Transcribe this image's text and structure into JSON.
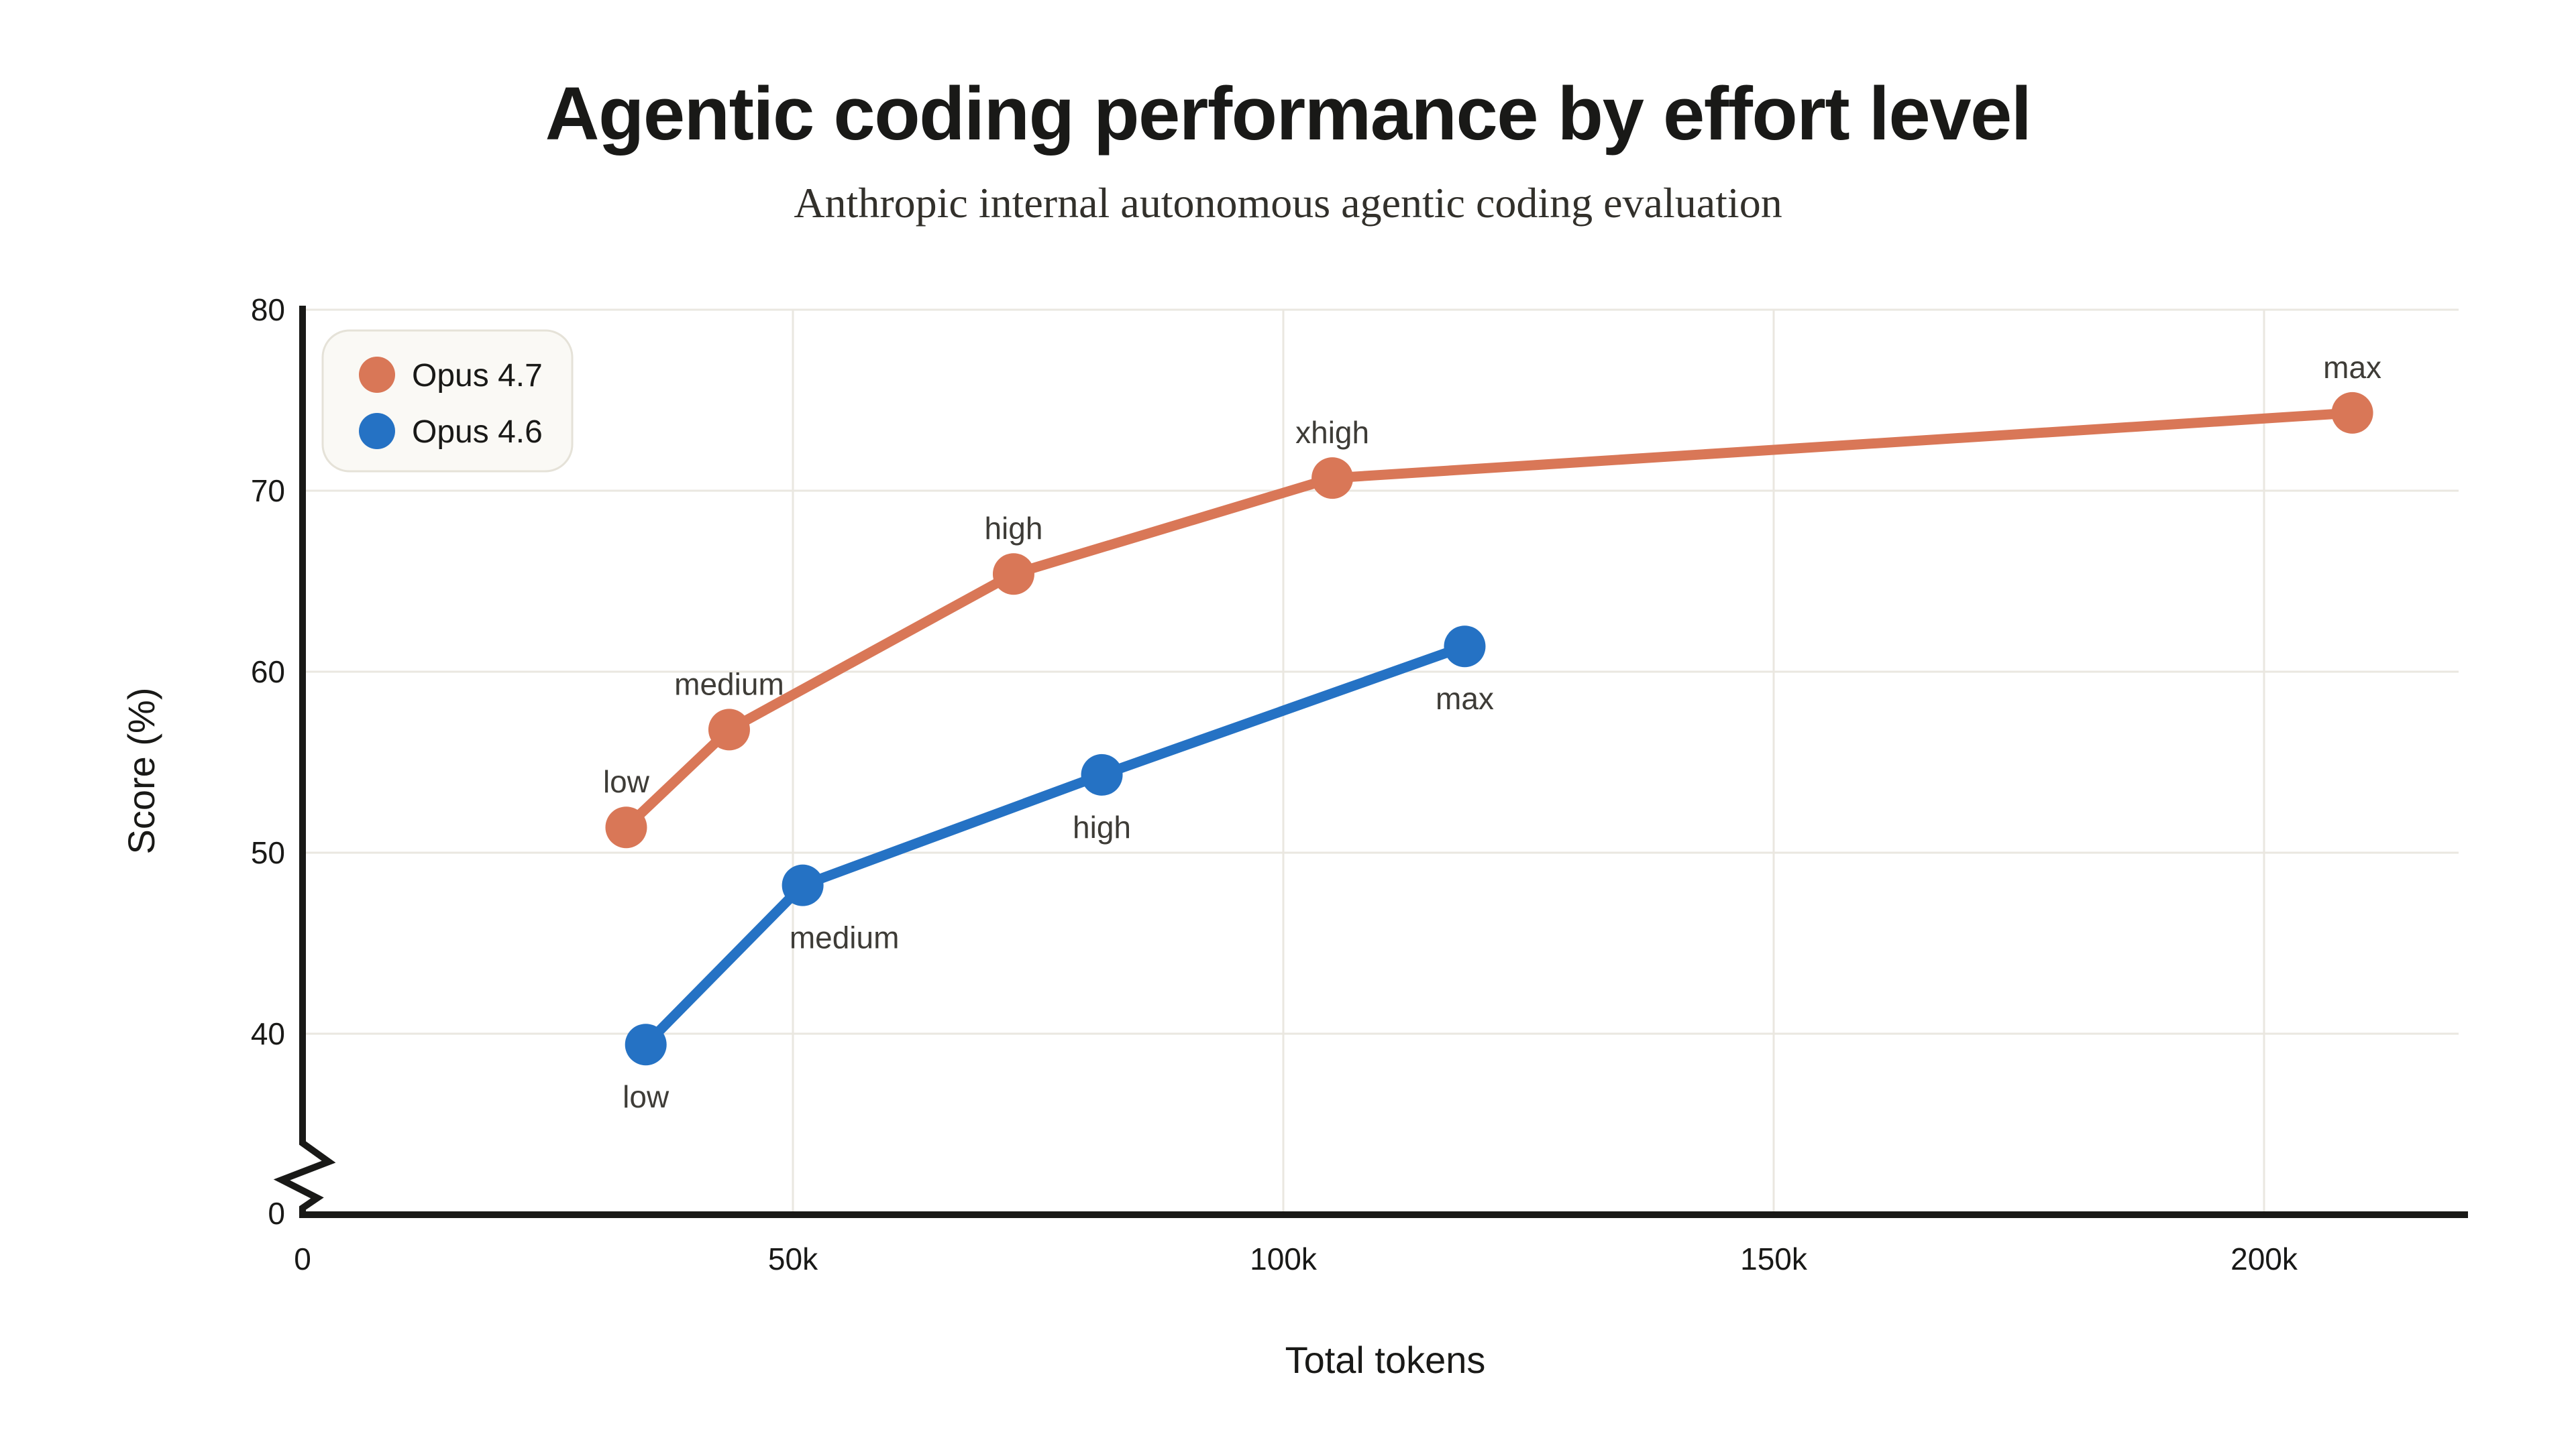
{
  "header": {
    "title": "Agentic coding performance by effort level",
    "subtitle": "Anthropic internal autonomous agentic coding evaluation"
  },
  "chart_data": {
    "type": "line",
    "title": "Agentic coding performance by effort level",
    "subtitle": "Anthropic internal autonomous agentic coding evaluation",
    "xlabel": "Total tokens",
    "ylabel": "Score (%)",
    "x_range": [
      0,
      220000
    ],
    "y_main_range": [
      40,
      80
    ],
    "y_axis_break": true,
    "grid": true,
    "legend_position": "top-left",
    "x_ticks": [
      {
        "value": 0,
        "label": "0"
      },
      {
        "value": 50000,
        "label": "50k"
      },
      {
        "value": 100000,
        "label": "100k"
      },
      {
        "value": 150000,
        "label": "150k"
      },
      {
        "value": 200000,
        "label": "200k"
      }
    ],
    "y_ticks": [
      {
        "value": 0,
        "label": "0"
      },
      {
        "value": 40,
        "label": "40"
      },
      {
        "value": 50,
        "label": "50"
      },
      {
        "value": 60,
        "label": "60"
      },
      {
        "value": 70,
        "label": "70"
      },
      {
        "value": 80,
        "label": "80"
      }
    ],
    "series": [
      {
        "name": "Opus 4.7",
        "color": "#d97757",
        "label_position": "above",
        "points": [
          {
            "effort": "low",
            "tokens": 33000,
            "score": 51.4
          },
          {
            "effort": "medium",
            "tokens": 43500,
            "score": 56.8
          },
          {
            "effort": "high",
            "tokens": 72500,
            "score": 65.4
          },
          {
            "effort": "xhigh",
            "tokens": 105000,
            "score": 70.7
          },
          {
            "effort": "max",
            "tokens": 209000,
            "score": 74.3
          }
        ]
      },
      {
        "name": "Opus 4.6",
        "color": "#2572c4",
        "label_position": "below",
        "points": [
          {
            "effort": "low",
            "tokens": 35000,
            "score": 39.4
          },
          {
            "effort": "medium",
            "tokens": 51000,
            "score": 48.2,
            "label_dx": 62
          },
          {
            "effort": "high",
            "tokens": 81500,
            "score": 54.3
          },
          {
            "effort": "max",
            "tokens": 118500,
            "score": 61.4
          }
        ]
      }
    ],
    "colors": {
      "background": "#ffffff",
      "grid": "#eae7e0",
      "axis": "#191917",
      "title_text": "#191917",
      "subtitle_text": "#32302b",
      "point_label_text": "#3e3c37",
      "legend_background": "#faf9f5",
      "legend_border": "#e5e2d8"
    }
  }
}
